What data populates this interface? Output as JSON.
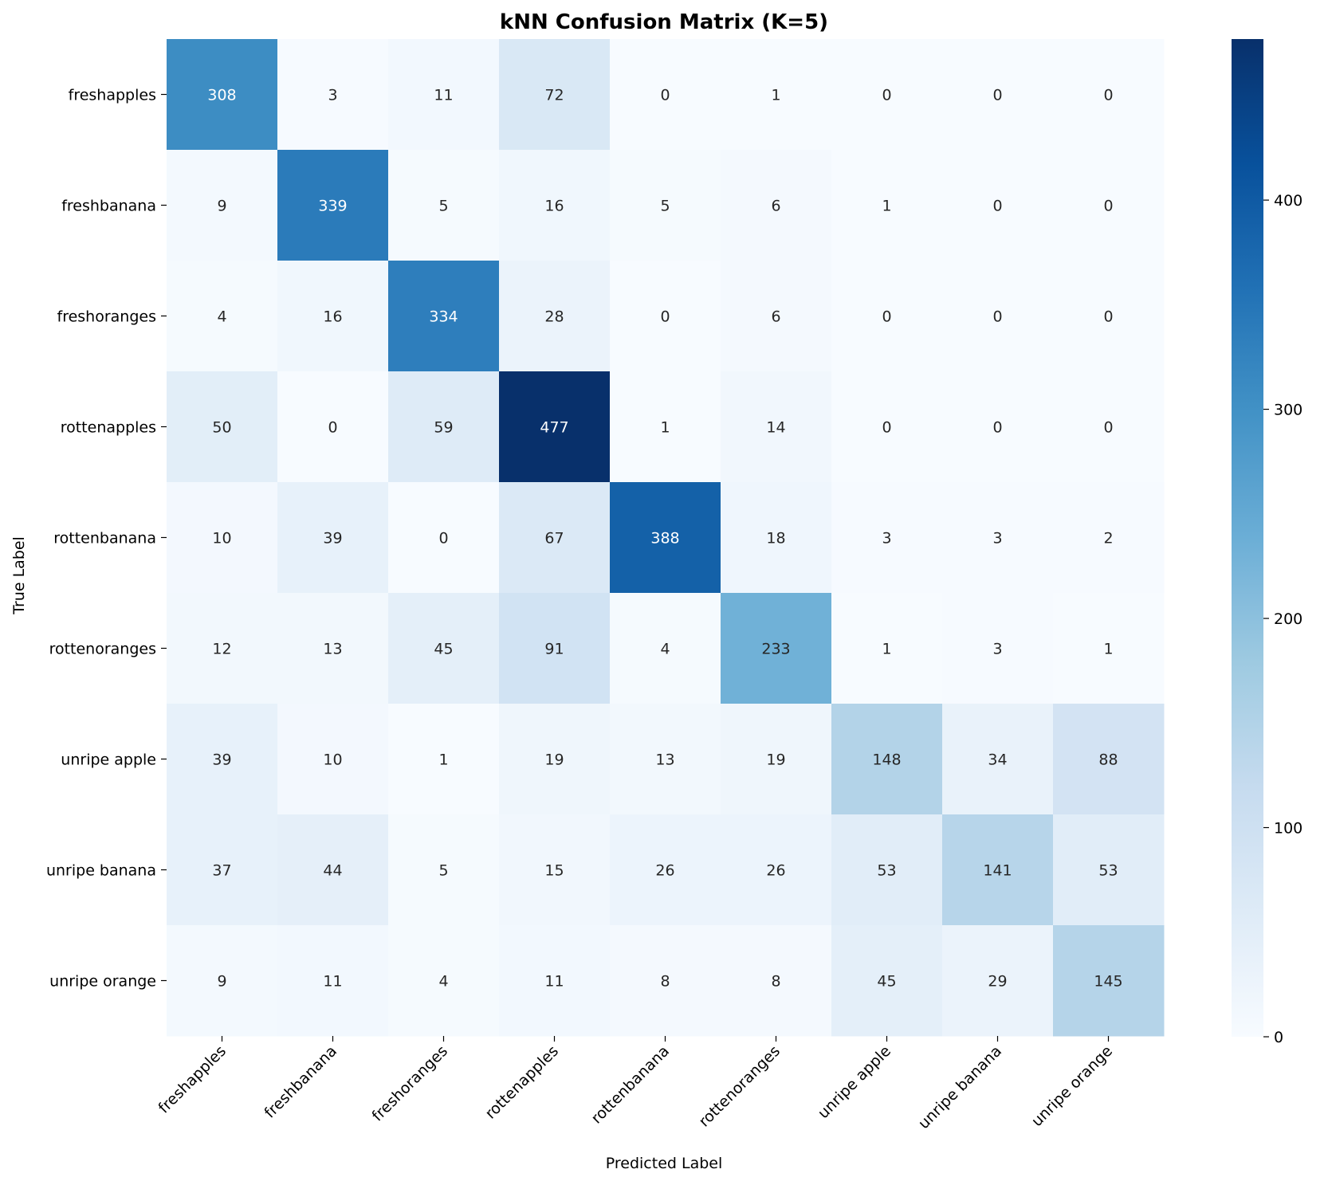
{
  "chart_data": {
    "type": "heatmap",
    "title": "kNN Confusion Matrix (K=5)",
    "xlabel": "Predicted Label",
    "ylabel": "True Label",
    "x_categories": [
      "freshapples",
      "freshbanana",
      "freshoranges",
      "rottenapples",
      "rottenbanana",
      "rottenoranges",
      "unripe apple",
      "unripe banana",
      "unripe orange"
    ],
    "y_categories": [
      "freshapples",
      "freshbanana",
      "freshoranges",
      "rottenapples",
      "rottenbanana",
      "rottenoranges",
      "unripe apple",
      "unripe banana",
      "unripe orange"
    ],
    "values": [
      [
        308,
        3,
        11,
        72,
        0,
        1,
        0,
        0,
        0
      ],
      [
        9,
        339,
        5,
        16,
        5,
        6,
        1,
        0,
        0
      ],
      [
        4,
        16,
        334,
        28,
        0,
        6,
        0,
        0,
        0
      ],
      [
        50,
        0,
        59,
        477,
        1,
        14,
        0,
        0,
        0
      ],
      [
        10,
        39,
        0,
        67,
        388,
        18,
        3,
        3,
        2
      ],
      [
        12,
        13,
        45,
        91,
        4,
        233,
        1,
        3,
        1
      ],
      [
        39,
        10,
        1,
        19,
        13,
        19,
        148,
        34,
        88
      ],
      [
        37,
        44,
        5,
        15,
        26,
        26,
        53,
        141,
        53
      ],
      [
        9,
        11,
        4,
        11,
        8,
        8,
        45,
        29,
        145
      ]
    ],
    "colormap": "Blues",
    "color_range": [
      0,
      477
    ],
    "colorbar_ticks": [
      0,
      100,
      200,
      300,
      400
    ]
  }
}
